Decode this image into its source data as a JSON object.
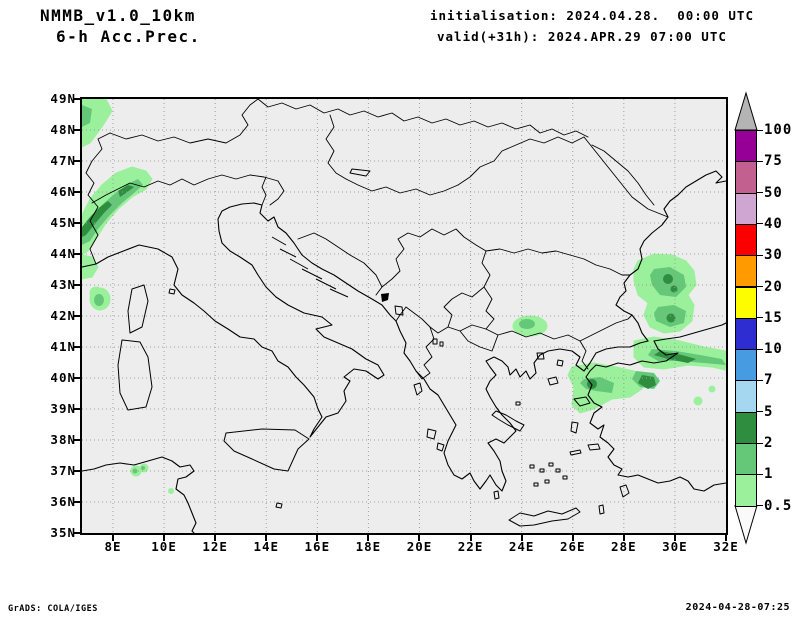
{
  "header": {
    "model": "NMMB_v1.0_10km",
    "product": "6-h Acc.Prec.",
    "init": "initialisation: 2024.04.28.  00:00 UTC",
    "valid": "valid(+31h): 2024.APR.29 07:00 UTC"
  },
  "map": {
    "lat_labels": [
      "49N",
      "48N",
      "47N",
      "46N",
      "45N",
      "44N",
      "43N",
      "42N",
      "41N",
      "40N",
      "39N",
      "38N",
      "37N",
      "36N",
      "35N"
    ],
    "lon_labels": [
      "8E",
      "10E",
      "12E",
      "14E",
      "16E",
      "18E",
      "20E",
      "22E",
      "24E",
      "26E",
      "28E",
      "30E",
      "32E"
    ],
    "background": "#ededed",
    "gridline_color": "#9e9e9e",
    "outline_color": "#000000",
    "precip_colors": {
      "light": "#9bf09b",
      "medium": "#64c878",
      "dark": "#2f8d3f"
    }
  },
  "colorbar": {
    "levels": [
      "100",
      "75",
      "50",
      "40",
      "30",
      "20",
      "15",
      "10",
      "7",
      "5",
      "2",
      "1",
      "0.5"
    ],
    "segment_colors": [
      "#960096",
      "#c2608f",
      "#cfa6d2",
      "#fa0000",
      "#ff9b00",
      "#fdfd00",
      "#2d2dd2",
      "#469be1",
      "#a5d7f0",
      "#2f8d3f",
      "#64c878",
      "#9bf09b"
    ],
    "above_max_color": "#b4b4b4",
    "below_min_color": "#fafafa"
  },
  "footer": {
    "left": "GrADS: COLA/IGES",
    "right": "2024-04-28-07:25"
  }
}
